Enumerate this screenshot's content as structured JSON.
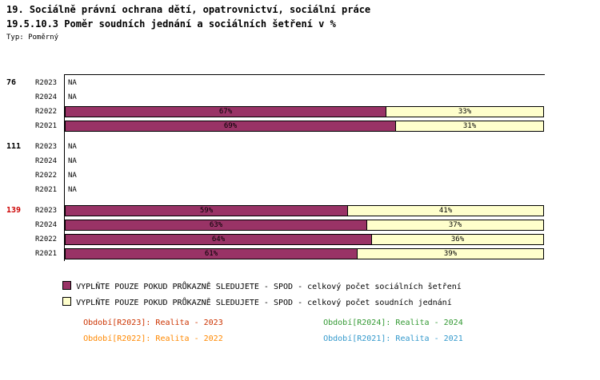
{
  "title_line1": "19. Sociálně právní ochrana dětí, opatrovnictví, sociální práce",
  "title_line2": "19.5.10.3 Poměr soudních jednání a sociálních šetření v %",
  "type_label": "Typ: Poměrný",
  "chart_data": {
    "type": "bar",
    "orientation": "horizontal-stacked",
    "unit": "%",
    "xlim": [
      0,
      100
    ],
    "na_text": "NA",
    "series": [
      {
        "name": "VYPLŇTE POUZE POKUD PRŮKAZNĚ SLEDUJETE - SPOD - celkový počet sociálních šetření",
        "color": "#993366"
      },
      {
        "name": "VYPLŇTE POUZE POKUD PRŮKAZNĚ SLEDUJETE - SPOD - celkový počet soudních jednání",
        "color": "#FFFFCC"
      }
    ],
    "groups": [
      {
        "label": "76",
        "label_color": "#000000",
        "rows": [
          {
            "period": "R2023",
            "na": true
          },
          {
            "period": "R2024",
            "na": true
          },
          {
            "period": "R2022",
            "values": [
              67,
              33
            ]
          },
          {
            "period": "R2021",
            "values": [
              69,
              31
            ]
          }
        ]
      },
      {
        "label": "111",
        "label_color": "#000000",
        "rows": [
          {
            "period": "R2023",
            "na": true
          },
          {
            "period": "R2024",
            "na": true
          },
          {
            "period": "R2022",
            "na": true
          },
          {
            "period": "R2021",
            "na": true
          }
        ]
      },
      {
        "label": "139",
        "label_color": "#CC0000",
        "rows": [
          {
            "period": "R2023",
            "values": [
              59,
              41
            ]
          },
          {
            "period": "R2024",
            "values": [
              63,
              37
            ]
          },
          {
            "period": "R2022",
            "values": [
              64,
              36
            ]
          },
          {
            "period": "R2021",
            "values": [
              61,
              39
            ]
          }
        ]
      }
    ]
  },
  "period_legend": [
    {
      "label": "Období[R2023]:",
      "value": "Realita - 2023",
      "color": "#CC3300"
    },
    {
      "label": "Období[R2024]:",
      "value": "Realita - 2024",
      "color": "#339933"
    },
    {
      "label": "Období[R2022]:",
      "value": "Realita - 2022",
      "color": "#FF8800"
    },
    {
      "label": "Období[R2021]:",
      "value": "Realita - 2021",
      "color": "#3399CC"
    }
  ]
}
